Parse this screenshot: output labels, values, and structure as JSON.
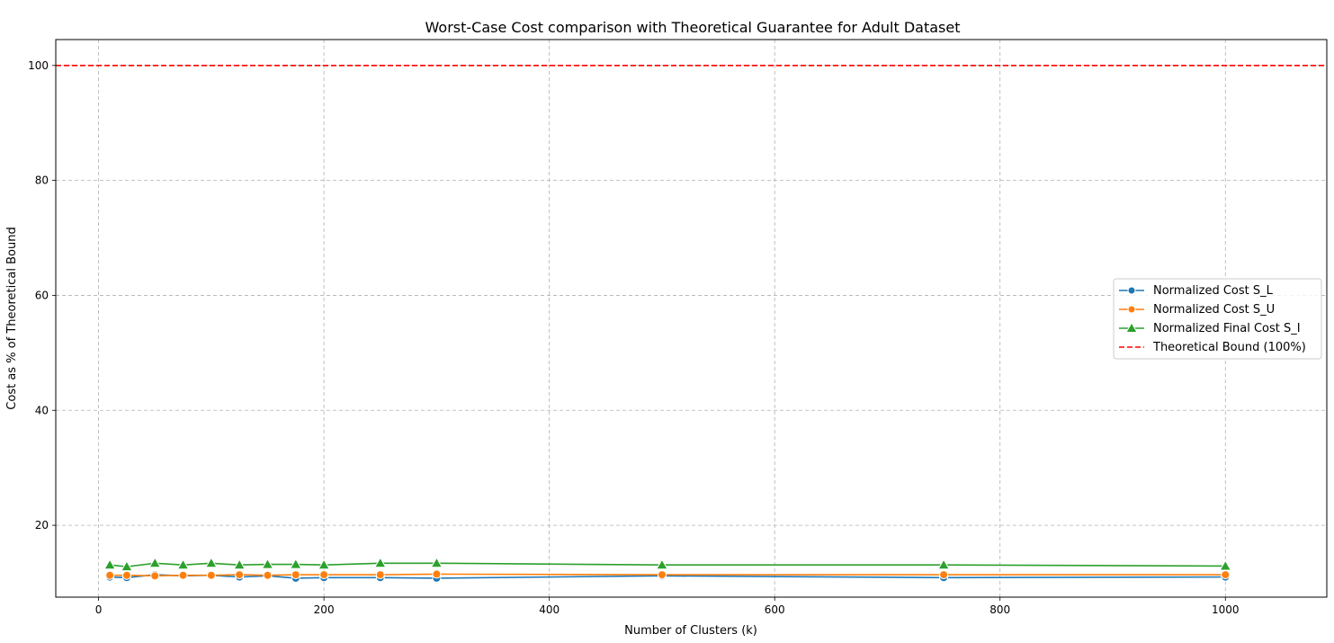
{
  "chart_data": {
    "type": "line",
    "title": "Worst-Case Cost comparison with Theoretical Guarantee for Adult Dataset",
    "xlabel": "Number of Clusters (k)",
    "ylabel": "Cost as % of Theoretical Bound",
    "xlim": [
      -38,
      1090
    ],
    "ylim": [
      7.5,
      104.5
    ],
    "xticks": [
      0,
      200,
      400,
      600,
      800,
      1000
    ],
    "yticks": [
      20,
      40,
      60,
      80,
      100
    ],
    "grid": true,
    "legend_position": "center-right",
    "x": [
      10,
      25,
      50,
      75,
      100,
      125,
      150,
      175,
      200,
      250,
      300,
      500,
      750,
      1000
    ],
    "series": [
      {
        "name": "Normalized Cost S_L",
        "color": "#1f77b4",
        "marker": "circle",
        "values": [
          11.0,
          10.9,
          11.4,
          11.2,
          11.3,
          11.0,
          11.2,
          10.8,
          10.9,
          10.9,
          10.8,
          11.2,
          10.9,
          11.0
        ]
      },
      {
        "name": "Normalized Cost S_U",
        "color": "#ff7f0e",
        "marker": "circle",
        "values": [
          11.3,
          11.3,
          11.2,
          11.3,
          11.3,
          11.4,
          11.3,
          11.4,
          11.4,
          11.4,
          11.5,
          11.4,
          11.4,
          11.4
        ]
      },
      {
        "name": "Normalized Final Cost S_I",
        "color": "#2ca02c",
        "marker": "triangle",
        "values": [
          13.1,
          12.8,
          13.4,
          13.1,
          13.4,
          13.1,
          13.2,
          13.2,
          13.1,
          13.4,
          13.4,
          13.1,
          13.1,
          12.9
        ]
      }
    ],
    "reference_lines": [
      {
        "name": "Theoretical Bound (100%)",
        "y": 100,
        "color": "#ff0000",
        "style": "dashed"
      }
    ]
  }
}
